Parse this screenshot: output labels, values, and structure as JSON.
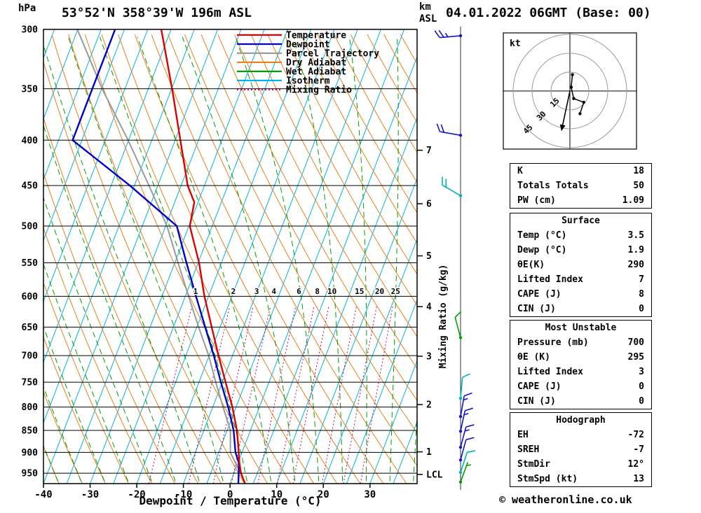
{
  "header": {
    "station_title": "53°52'N 358°39'W 196m ASL",
    "datetime_title": "04.01.2022 06GMT (Base: 00)",
    "pressure_unit": "hPa",
    "altitude_unit_line1": "km",
    "altitude_unit_line2": "ASL"
  },
  "footer": {
    "copyright": "© weatheronline.co.uk"
  },
  "chart_data": [
    {
      "type": "line",
      "subtype": "skew-t-log-p-sounding",
      "xlabel": "Dewpoint / Temperature (°C)",
      "ylabel": "hPa",
      "mixing_ratio_axis_label": "Mixing Ratio (g/kg)",
      "pressure_ticks_hpa": [
        300,
        350,
        400,
        450,
        500,
        550,
        600,
        650,
        700,
        750,
        800,
        850,
        900,
        950
      ],
      "temp_ticks_c": [
        -40,
        -30,
        -20,
        -10,
        0,
        10,
        20,
        30
      ],
      "pressure_range_hpa": [
        300,
        976
      ],
      "temp_range_c": [
        -40,
        40
      ],
      "km_ticks": [
        1,
        2,
        3,
        4,
        5,
        6,
        7
      ],
      "lcl": {
        "label": "LCL",
        "pressure_hpa": 953
      },
      "legend": [
        {
          "label": "Temperature",
          "color": "#e00000",
          "dash": ""
        },
        {
          "label": "Dewpoint",
          "color": "#0000cd",
          "dash": ""
        },
        {
          "label": "Parcel Trajectory",
          "color": "#9a9a9a",
          "dash": ""
        },
        {
          "label": "Dry Adiabat",
          "color": "#e8821e",
          "dash": ""
        },
        {
          "label": "Wet Adiabat",
          "color": "#00a000",
          "dash": ""
        },
        {
          "label": "Isotherm",
          "color": "#00b4e4",
          "dash": ""
        },
        {
          "label": "Mixing Ratio",
          "color": "#cc0066",
          "dash": "2 3"
        }
      ],
      "colors": {
        "temperature": "#e00000",
        "dewpoint": "#0000cd",
        "parcel": "#9a9a9a",
        "dry_adiabat": "#e8821e",
        "wet_adiabat": "#00a000",
        "isotherm": "#00b4e4",
        "mixing_ratio": "#cc0066",
        "isobar": "#000000"
      },
      "temperature_profile_p_c": [
        [
          980,
          3.5
        ],
        [
          950,
          1.5
        ],
        [
          925,
          0.3
        ],
        [
          900,
          -0.7
        ],
        [
          850,
          -2.9
        ],
        [
          800,
          -5.8
        ],
        [
          750,
          -9.3
        ],
        [
          700,
          -13.0
        ],
        [
          650,
          -16.8
        ],
        [
          600,
          -20.9
        ],
        [
          550,
          -24.8
        ],
        [
          500,
          -29.8
        ],
        [
          470,
          -30.8
        ],
        [
          450,
          -33.6
        ],
        [
          400,
          -38.9
        ],
        [
          350,
          -44.9
        ],
        [
          300,
          -52.1
        ]
      ],
      "dewpoint_profile_p_c": [
        [
          980,
          1.9
        ],
        [
          950,
          1.0
        ],
        [
          925,
          0.2
        ],
        [
          900,
          -1.4
        ],
        [
          850,
          -3.6
        ],
        [
          800,
          -6.7
        ],
        [
          750,
          -10.3
        ],
        [
          700,
          -14.0
        ],
        [
          650,
          -18.2
        ],
        [
          600,
          -22.7
        ],
        [
          550,
          -27.5
        ],
        [
          500,
          -32.6
        ],
        [
          450,
          -46.0
        ],
        [
          400,
          -62.0
        ],
        [
          350,
          -62.0
        ],
        [
          300,
          -62.0
        ]
      ],
      "parcel_profile_p_c": [
        [
          980,
          3.5
        ],
        [
          950,
          1.4
        ],
        [
          900,
          -2.5
        ],
        [
          850,
          -4.3
        ],
        [
          800,
          -7.8
        ],
        [
          750,
          -11.4
        ],
        [
          700,
          -15.1
        ],
        [
          650,
          -19.6
        ],
        [
          600,
          -24.3
        ],
        [
          550,
          -29.3
        ],
        [
          500,
          -34.7
        ],
        [
          450,
          -41.9
        ],
        [
          400,
          -50.1
        ],
        [
          350,
          -59.9
        ],
        [
          300,
          -70.1
        ]
      ],
      "mixing_ratio_lines_gkg": [
        1,
        2,
        3,
        4,
        6,
        8,
        10,
        15,
        20,
        25
      ],
      "isotherms_c": {
        "min": -80,
        "max": 40,
        "step": 5
      },
      "dry_adiabats_c": {
        "min": -40,
        "max": 160,
        "step": 5
      },
      "wet_adiabats_c": {
        "min": -40,
        "max": 40,
        "step": 5
      },
      "winds": [
        {
          "p": 972,
          "dir": 20,
          "spd": 7,
          "color": "#00a000"
        },
        {
          "p": 948,
          "dir": 18,
          "spd": 10,
          "color": "#00b4b4"
        },
        {
          "p": 918,
          "dir": 15,
          "spd": 12,
          "color": "#1414cc"
        },
        {
          "p": 888,
          "dir": 15,
          "spd": 17,
          "color": "#1414cc"
        },
        {
          "p": 852,
          "dir": 12,
          "spd": 17,
          "color": "#1414cc"
        },
        {
          "p": 820,
          "dir": 10,
          "spd": 15,
          "color": "#1414cc"
        },
        {
          "p": 782,
          "dir": 5,
          "spd": 12,
          "color": "#00b4b4"
        },
        {
          "p": 668,
          "dir": 345,
          "spd": 12,
          "color": "#00a000"
        },
        {
          "p": 462,
          "dir": 300,
          "spd": 18,
          "color": "#00b4b4"
        },
        {
          "p": 395,
          "dir": 280,
          "spd": 22,
          "color": "#1414cc"
        },
        {
          "p": 305,
          "dir": 265,
          "spd": 27,
          "color": "#1414cc"
        }
      ]
    },
    {
      "type": "line",
      "subtype": "hodograph",
      "unit_label": "kt",
      "rings_kt": [
        15,
        30,
        45
      ],
      "trace_kt": [
        [
          2,
          13
        ],
        [
          1,
          3
        ],
        [
          3,
          -6
        ],
        [
          11,
          -9
        ],
        [
          8,
          -18
        ]
      ],
      "storm_motion": {
        "dir_deg": 12,
        "spd_kt": 13
      }
    }
  ],
  "panels": {
    "indices": {
      "rows": [
        {
          "label": "K",
          "value": "18"
        },
        {
          "label": "Totals Totals",
          "value": "50"
        },
        {
          "label": "PW (cm)",
          "value": "1.09"
        }
      ]
    },
    "surface": {
      "title": "Surface",
      "rows": [
        {
          "label": "Temp (°C)",
          "value": "3.5"
        },
        {
          "label": "Dewp (°C)",
          "value": "1.9"
        },
        {
          "label": "θE(K)",
          "value": "290"
        },
        {
          "label": "Lifted Index",
          "value": "7"
        },
        {
          "label": "CAPE (J)",
          "value": "8"
        },
        {
          "label": "CIN (J)",
          "value": "0"
        }
      ]
    },
    "most_unstable": {
      "title": "Most Unstable",
      "rows": [
        {
          "label": "Pressure (mb)",
          "value": "700"
        },
        {
          "label": "θE (K)",
          "value": "295"
        },
        {
          "label": "Lifted Index",
          "value": "3"
        },
        {
          "label": "CAPE (J)",
          "value": "0"
        },
        {
          "label": "CIN (J)",
          "value": "0"
        }
      ]
    },
    "hodograph": {
      "title": "Hodograph",
      "rows": [
        {
          "label": "EH",
          "value": "-72"
        },
        {
          "label": "SREH",
          "value": "-7"
        },
        {
          "label": "StmDir",
          "value": "12°"
        },
        {
          "label": "StmSpd (kt)",
          "value": "13"
        }
      ]
    }
  }
}
